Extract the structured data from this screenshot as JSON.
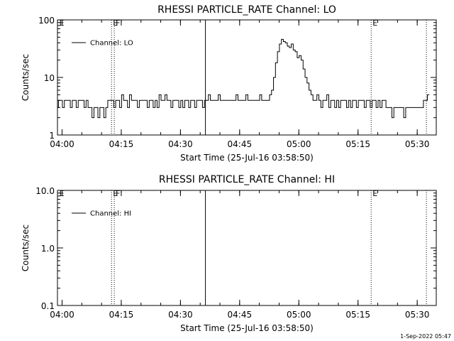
{
  "chart_data": [
    {
      "type": "line",
      "title": "RHESSI PARTICLE_RATE Channel: LO",
      "xlabel": "Start Time (25-Jul-16 03:58:50)",
      "ylabel": "Counts/sec",
      "yscale": "log",
      "ylim": [
        1,
        100
      ],
      "y_ticks": [
        1,
        10,
        100
      ],
      "y_tick_labels": [
        "1",
        "10",
        "100"
      ],
      "xlim_minutes": [
        0,
        96
      ],
      "x_ticks_minutes": [
        1.17,
        16.17,
        31.17,
        46.17,
        61.17,
        76.17,
        91.17
      ],
      "x_tick_labels": [
        "04:00",
        "04:15",
        "04:30",
        "04:45",
        "05:00",
        "05:15",
        "05:30"
      ],
      "legend": "Channel: LO",
      "legend_position": "top-left",
      "vlines": [
        {
          "x": 13.7,
          "style": "dotted",
          "label": "E"
        },
        {
          "x": 14.4,
          "style": "dotted",
          "label": "F"
        },
        {
          "x": 37.5,
          "style": "solid",
          "label": ""
        },
        {
          "x": 79.5,
          "style": "dotted",
          "label": "E"
        },
        {
          "x": 93.5,
          "style": "dotted",
          "label": ""
        }
      ],
      "edge_labels": [
        {
          "x": 0.3,
          "label": "E"
        }
      ],
      "series": [
        {
          "name": "Channel: LO",
          "x": [
            0,
            0.5,
            1,
            1.5,
            2,
            2.5,
            3,
            3.5,
            4,
            4.5,
            5,
            5.5,
            6,
            6.5,
            7,
            7.5,
            8,
            8.5,
            9,
            9.5,
            10,
            10.5,
            11,
            11.5,
            12,
            12.5,
            13,
            13.5,
            14,
            14.5,
            15,
            15.5,
            16,
            16.5,
            17,
            17.5,
            18,
            18.5,
            19,
            19.5,
            20,
            20.5,
            21,
            21.5,
            22,
            22.5,
            23,
            23.5,
            24,
            24.5,
            25,
            25.5,
            26,
            26.5,
            27,
            27.5,
            28,
            28.5,
            29,
            29.5,
            30,
            30.5,
            31,
            31.5,
            32,
            32.5,
            33,
            33.5,
            34,
            34.5,
            35,
            35.5,
            36,
            36.5,
            37,
            37.5,
            38,
            38.5,
            39,
            39.5,
            40,
            40.5,
            41,
            41.5,
            42,
            42.5,
            43,
            43.5,
            44,
            44.5,
            45,
            45.5,
            46,
            46.5,
            47,
            47.5,
            48,
            48.5,
            49,
            49.5,
            50,
            50.5,
            51,
            51.5,
            52,
            52.5,
            53,
            53.5,
            54,
            54.5,
            55,
            55.5,
            56,
            56.5,
            57,
            57.5,
            58,
            58.5,
            59,
            59.5,
            60,
            60.5,
            61,
            61.5,
            62,
            62.5,
            63,
            63.5,
            64,
            64.5,
            65,
            65.5,
            66,
            66.5,
            67,
            67.5,
            68,
            68.5,
            69,
            69.5,
            70,
            70.5,
            71,
            71.5,
            72,
            72.5,
            73,
            73.5,
            74,
            74.5,
            75,
            75.5,
            76,
            76.5,
            77,
            77.5,
            78,
            78.5,
            79,
            79.5,
            80,
            80.5,
            81,
            81.5,
            82,
            82.5,
            83,
            83.5,
            84,
            84.5,
            85,
            85.5,
            86,
            86.5,
            87,
            87.5,
            88,
            88.5,
            89,
            89.5,
            90,
            90.5,
            91,
            91.5,
            92,
            92.5,
            93,
            93.5,
            94
          ],
          "values": [
            3,
            4,
            4,
            3,
            4,
            4,
            4,
            3,
            4,
            4,
            3,
            4,
            4,
            4,
            3,
            4,
            3,
            3,
            2,
            3,
            3,
            2,
            3,
            3,
            2,
            3,
            4,
            4,
            4,
            3,
            4,
            4,
            3,
            5,
            4,
            4,
            3,
            5,
            4,
            4,
            4,
            3,
            4,
            4,
            4,
            4,
            3,
            4,
            4,
            3,
            4,
            3,
            5,
            4,
            4,
            5,
            4,
            4,
            3,
            4,
            4,
            4,
            3,
            4,
            3,
            4,
            4,
            3,
            4,
            4,
            3,
            4,
            4,
            4,
            3,
            4,
            4,
            5,
            4,
            4,
            4,
            4,
            5,
            4,
            4,
            4,
            4,
            4,
            4,
            4,
            4,
            5,
            4,
            4,
            4,
            4,
            5,
            4,
            4,
            4,
            4,
            4,
            4,
            5,
            4,
            4,
            4,
            4,
            5,
            6,
            10,
            18,
            28,
            38,
            46,
            42,
            40,
            35,
            33,
            38,
            30,
            28,
            22,
            24,
            20,
            14,
            10,
            8,
            6,
            5,
            4,
            4,
            5,
            4,
            3,
            4,
            4,
            5,
            3,
            4,
            4,
            3,
            4,
            3,
            4,
            4,
            4,
            3,
            4,
            3,
            4,
            4,
            3,
            4,
            4,
            4,
            3,
            4,
            4,
            3,
            4,
            4,
            3,
            4,
            3,
            4,
            4,
            3,
            3,
            3,
            2,
            3,
            3,
            3,
            3,
            3,
            2,
            3,
            3,
            3,
            3,
            3,
            3,
            3,
            3,
            3,
            4,
            4,
            5
          ]
        }
      ]
    },
    {
      "type": "line",
      "title": "RHESSI PARTICLE_RATE Channel: HI",
      "xlabel": "Start Time (25-Jul-16 03:58:50)",
      "ylabel": "Counts/sec",
      "yscale": "log",
      "ylim": [
        0.1,
        10
      ],
      "y_ticks": [
        0.1,
        1,
        10
      ],
      "y_tick_labels": [
        "0.1",
        "1.0",
        "10.0"
      ],
      "xlim_minutes": [
        0,
        96
      ],
      "x_ticks_minutes": [
        1.17,
        16.17,
        31.17,
        46.17,
        61.17,
        76.17,
        91.17
      ],
      "x_tick_labels": [
        "04:00",
        "04:15",
        "04:30",
        "04:45",
        "05:00",
        "05:15",
        "05:30"
      ],
      "legend": "Channel: HI",
      "legend_position": "top-left",
      "vlines": [
        {
          "x": 13.7,
          "style": "dotted",
          "label": "E"
        },
        {
          "x": 14.4,
          "style": "dotted",
          "label": "F"
        },
        {
          "x": 37.5,
          "style": "solid",
          "label": ""
        },
        {
          "x": 79.5,
          "style": "dotted",
          "label": "E"
        },
        {
          "x": 93.5,
          "style": "dotted",
          "label": ""
        }
      ],
      "edge_labels": [
        {
          "x": 0.3,
          "label": "E"
        }
      ],
      "series": [
        {
          "name": "Channel: HI",
          "x": [],
          "values": []
        }
      ]
    }
  ],
  "footer": {
    "timestamp": "1-Sep-2022 05:47"
  }
}
